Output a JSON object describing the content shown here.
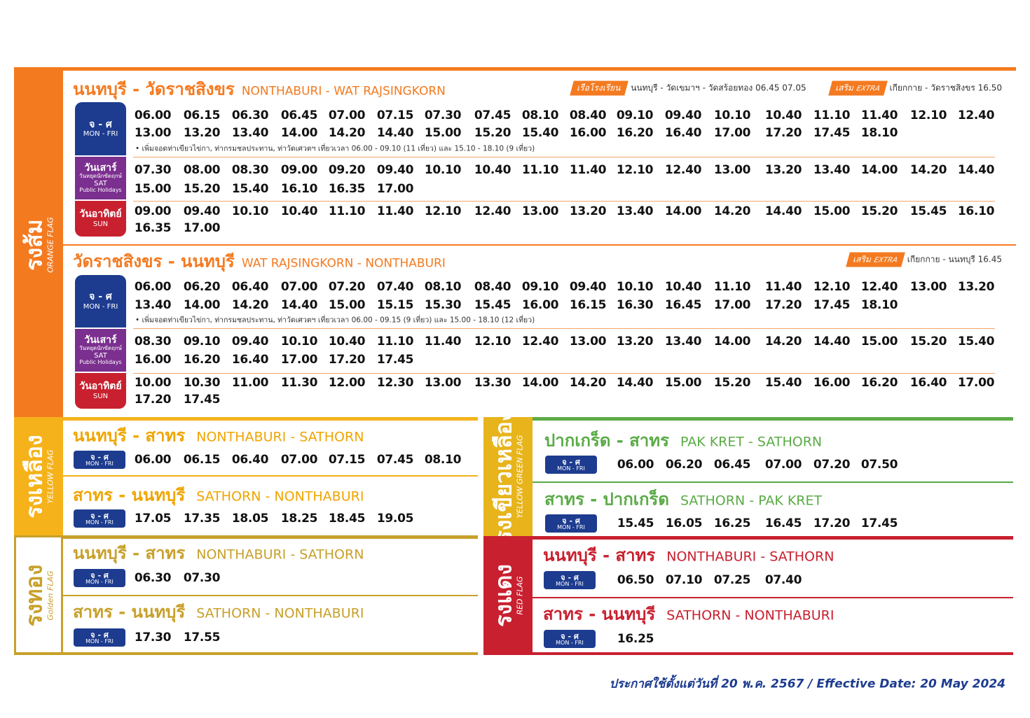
{
  "orange": {
    "flag_th": "รงส้ม",
    "flag_en": "ORANGE FLAG",
    "routes": [
      {
        "title_th": "นนทบุรี - วัดราชสิงขร",
        "title_en": "NONTHABURI - WAT RAJSINGKORN",
        "extras": [
          {
            "badge": "เรือโรงเรียน",
            "text": "นนทบุรี - วัดเขมาฯ - วัดสร้อยทอง 06.45   07.05"
          },
          {
            "badge": "เสริม",
            "badge_en": "EXTRA",
            "text": "เกียกกาย - วัดราชสิงขร 16.50"
          }
        ],
        "days": [
          {
            "label_th": "จ - ศ",
            "label_en": "MON - FRI",
            "rows": [
              [
                "06.00",
                "06.15",
                "06.30",
                "06.45",
                "07.00",
                "07.15",
                "07.30",
                "07.45",
                "08.10",
                "08.40",
                "09.10",
                "09.40",
                "10.10",
                "10.40",
                "11.10",
                "11.40",
                "12.10",
                "12.40"
              ],
              [
                "13.00",
                "13.20",
                "13.40",
                "14.00",
                "14.20",
                "14.40",
                "15.00",
                "15.20",
                "15.40",
                "16.00",
                "16.20",
                "16.40",
                "17.00",
                "17.20",
                "17.45",
                "18.10"
              ]
            ],
            "note": "• เพิ่มจอดท่าเขียวไข่กา, ท่ากรมชลประทาน, ท่าวัดเศวตฯ เที่ยวเวลา 06.00 - 09.10 (11 เที่ยว) และ 15.10 - 18.10 (9 เที่ยว)"
          },
          {
            "label_th": "วันเสาร์",
            "label_sub": "วันหยุดนักขัตฤกษ์",
            "label_en": "SAT",
            "label_en2": "Public Holidays",
            "rows": [
              [
                "07.30",
                "08.00",
                "08.30",
                "09.00",
                "09.20",
                "09.40",
                "10.10",
                "10.40",
                "11.10",
                "11.40",
                "12.10",
                "12.40",
                "13.00",
                "13.20",
                "13.40",
                "14.00",
                "14.20",
                "14.40"
              ],
              [
                "15.00",
                "15.20",
                "15.40",
                "16.10",
                "16.35",
                "17.00"
              ]
            ]
          },
          {
            "label_th": "วันอาทิตย์",
            "label_en": "SUN",
            "rows": [
              [
                "09.00",
                "09.40",
                "10.10",
                "10.40",
                "11.10",
                "11.40",
                "12.10",
                "12.40",
                "13.00",
                "13.20",
                "13.40",
                "14.00",
                "14.20",
                "14.40",
                "15.00",
                "15.20",
                "15.45",
                "16.10"
              ],
              [
                "16.35",
                "17.00"
              ]
            ]
          }
        ]
      },
      {
        "title_th": "วัดราชสิงขร - นนทบุรี",
        "title_en": "WAT RAJSINGKORN - NONTHABURI",
        "extras": [
          {
            "badge": "เสริม",
            "badge_en": "EXTRA",
            "text": "เกียกกาย - นนทบุรี 16.45"
          }
        ],
        "days": [
          {
            "label_th": "จ - ศ",
            "label_en": "MON - FRI",
            "rows": [
              [
                "06.00",
                "06.20",
                "06.40",
                "07.00",
                "07.20",
                "07.40",
                "08.10",
                "08.40",
                "09.10",
                "09.40",
                "10.10",
                "10.40",
                "11.10",
                "11.40",
                "12.10",
                "12.40",
                "13.00",
                "13.20"
              ],
              [
                "13.40",
                "14.00",
                "14.20",
                "14.40",
                "15.00",
                "15.15",
                "15.30",
                "15.45",
                "16.00",
                "16.15",
                "16.30",
                "16.45",
                "17.00",
                "17.20",
                "17.45",
                "18.10"
              ]
            ],
            "note": "• เพิ่มจอดท่าเขียวไข่กา, ท่ากรมชลประทาน, ท่าวัดเศวตฯ เที่ยวเวลา 06.00 - 09.15 (9 เที่ยว) และ 15.00 - 18.10 (12 เที่ยว)"
          },
          {
            "label_th": "วันเสาร์",
            "label_sub": "วันหยุดนักขัตฤกษ์",
            "label_en": "SAT",
            "label_en2": "Public Holidays",
            "rows": [
              [
                "08.30",
                "09.10",
                "09.40",
                "10.10",
                "10.40",
                "11.10",
                "11.40",
                "12.10",
                "12.40",
                "13.00",
                "13.20",
                "13.40",
                "14.00",
                "14.20",
                "14.40",
                "15.00",
                "15.20",
                "15.40"
              ],
              [
                "16.00",
                "16.20",
                "16.40",
                "17.00",
                "17.20",
                "17.45"
              ]
            ]
          },
          {
            "label_th": "วันอาทิตย์",
            "label_en": "SUN",
            "rows": [
              [
                "10.00",
                "10.30",
                "11.00",
                "11.30",
                "12.00",
                "12.30",
                "13.00",
                "13.30",
                "14.00",
                "14.20",
                "14.40",
                "15.00",
                "15.20",
                "15.40",
                "16.00",
                "16.20",
                "16.40",
                "17.00"
              ],
              [
                "17.20",
                "17.45"
              ]
            ]
          }
        ]
      }
    ]
  },
  "panels": [
    {
      "flag_th": "รงเหลือง",
      "flag_en": "YELLOW FLAG",
      "routes": [
        {
          "title_th": "นนทบุรี - สาทร",
          "title_en": "NONTHABURI - SATHORN",
          "day_th": "จ - ศ",
          "day_en": "MON - FRI",
          "times": [
            "06.00",
            "06.15",
            "06.40",
            "07.00",
            "07.15",
            "07.45",
            "08.10"
          ]
        },
        {
          "title_th": "สาทร - นนทบุรี",
          "title_en": "SATHORN - NONTHABURI",
          "day_th": "จ - ศ",
          "day_en": "MON - FRI",
          "times": [
            "17.05",
            "17.35",
            "18.05",
            "18.25",
            "18.45",
            "19.05"
          ]
        }
      ]
    },
    {
      "flag_th": "รงทอง",
      "flag_en": "Golden FLAG",
      "routes": [
        {
          "title_th": "นนทบุรี - สาทร",
          "title_en": "NONTHABURI - SATHORN",
          "day_th": "จ - ศ",
          "day_en": "MON - FRI",
          "times": [
            "06.30",
            "07.30"
          ]
        },
        {
          "title_th": "สาทร - นนทบุรี",
          "title_en": "SATHORN - NONTHABURI",
          "day_th": "จ - ศ",
          "day_en": "MON - FRI",
          "times": [
            "17.30",
            "17.55"
          ]
        }
      ]
    },
    {
      "flag_th": "รงเขียวเหลือง",
      "flag_en": "YELLOW GREEN FLAG",
      "routes": [
        {
          "title_th": "ปากเกร็ด - สาทร",
          "title_en": "PAK KRET - SATHORN",
          "day_th": "จ - ศ",
          "day_en": "MON - FRI",
          "times": [
            "06.00",
            "06.20",
            "06.45",
            "07.00",
            "07.20",
            "07.50"
          ]
        },
        {
          "title_th": "สาทร - ปากเกร็ด",
          "title_en": "SATHORN - PAK KRET",
          "day_th": "จ - ศ",
          "day_en": "MON - FRI",
          "times": [
            "15.45",
            "16.05",
            "16.25",
            "16.45",
            "17.20",
            "17.45"
          ]
        }
      ]
    },
    {
      "flag_th": "รงแดง",
      "flag_en": "RED FLAG",
      "routes": [
        {
          "title_th": "นนทบุรี - สาทร",
          "title_en": "NONTHABURI - SATHORN",
          "day_th": "จ - ศ",
          "day_en": "MON - FRI",
          "times": [
            "06.50",
            "07.10",
            "07.25",
            "07.40"
          ]
        },
        {
          "title_th": "สาทร - นนทบุรี",
          "title_en": "SATHORN - NONTHABURI",
          "day_th": "จ - ศ",
          "day_en": "MON - FRI",
          "times": [
            "16.25"
          ]
        }
      ]
    }
  ],
  "footer": "ประกาศใช้ตั้งแต่วันที่ 20 พ.ค. 2567 / Effective Date: 20 May 2024"
}
